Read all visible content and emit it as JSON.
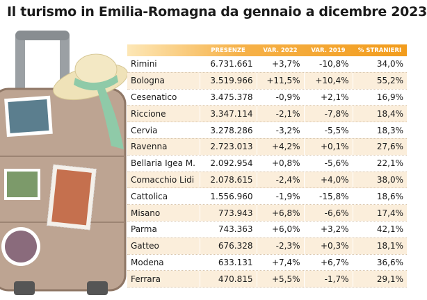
{
  "title": "Il turismo in Emilia-Romagna da gennaio a dicembre 2023",
  "table": {
    "header": [
      "PRESENZE",
      "VAR. 2022",
      "VAR. 2019",
      "% STRANIERI"
    ],
    "rows": [
      [
        "Rimini",
        "6.731.661",
        "+3,7%",
        "-10,8%",
        "34,0%"
      ],
      [
        "Bologna",
        "3.519.966",
        "+11,5%",
        "+10,4%",
        "55,2%"
      ],
      [
        "Cesenatico",
        "3.475.378",
        "-0,9%",
        "+2,1%",
        "16,9%"
      ],
      [
        "Riccione",
        "3.347.114",
        "-2,1%",
        "-7,8%",
        "18,4%"
      ],
      [
        "Cervia",
        "3.278.286",
        "-3,2%",
        "-5,5%",
        "18,3%"
      ],
      [
        "Ravenna",
        "2.723.013",
        "+4,2%",
        "+0,1%",
        "27,6%"
      ],
      [
        "Bellaria Igea M.",
        "2.092.954",
        "+0,8%",
        "-5,6%",
        "22,1%"
      ],
      [
        "Comacchio Lidi",
        "2.078.615",
        "-2,4%",
        "+4,0%",
        "38,0%"
      ],
      [
        "Cattolica",
        "1.556.960",
        "-1,9%",
        "-15,8%",
        "18,6%"
      ],
      [
        "Misano",
        "773.943",
        "+6,8%",
        "-6,6%",
        "17,4%"
      ],
      [
        "Parma",
        "743.363",
        "+6,0%",
        "+3,2%",
        "42,1%"
      ],
      [
        "Gatteo",
        "676.328",
        "-2,3%",
        "+0,3%",
        "18,1%"
      ],
      [
        "Modena",
        "633.131",
        "+7,4%",
        "+6,7%",
        "36,6%"
      ],
      [
        "Ferrara",
        "470.815",
        "+5,5%",
        "-1,7%",
        "29,1%"
      ]
    ]
  }
}
